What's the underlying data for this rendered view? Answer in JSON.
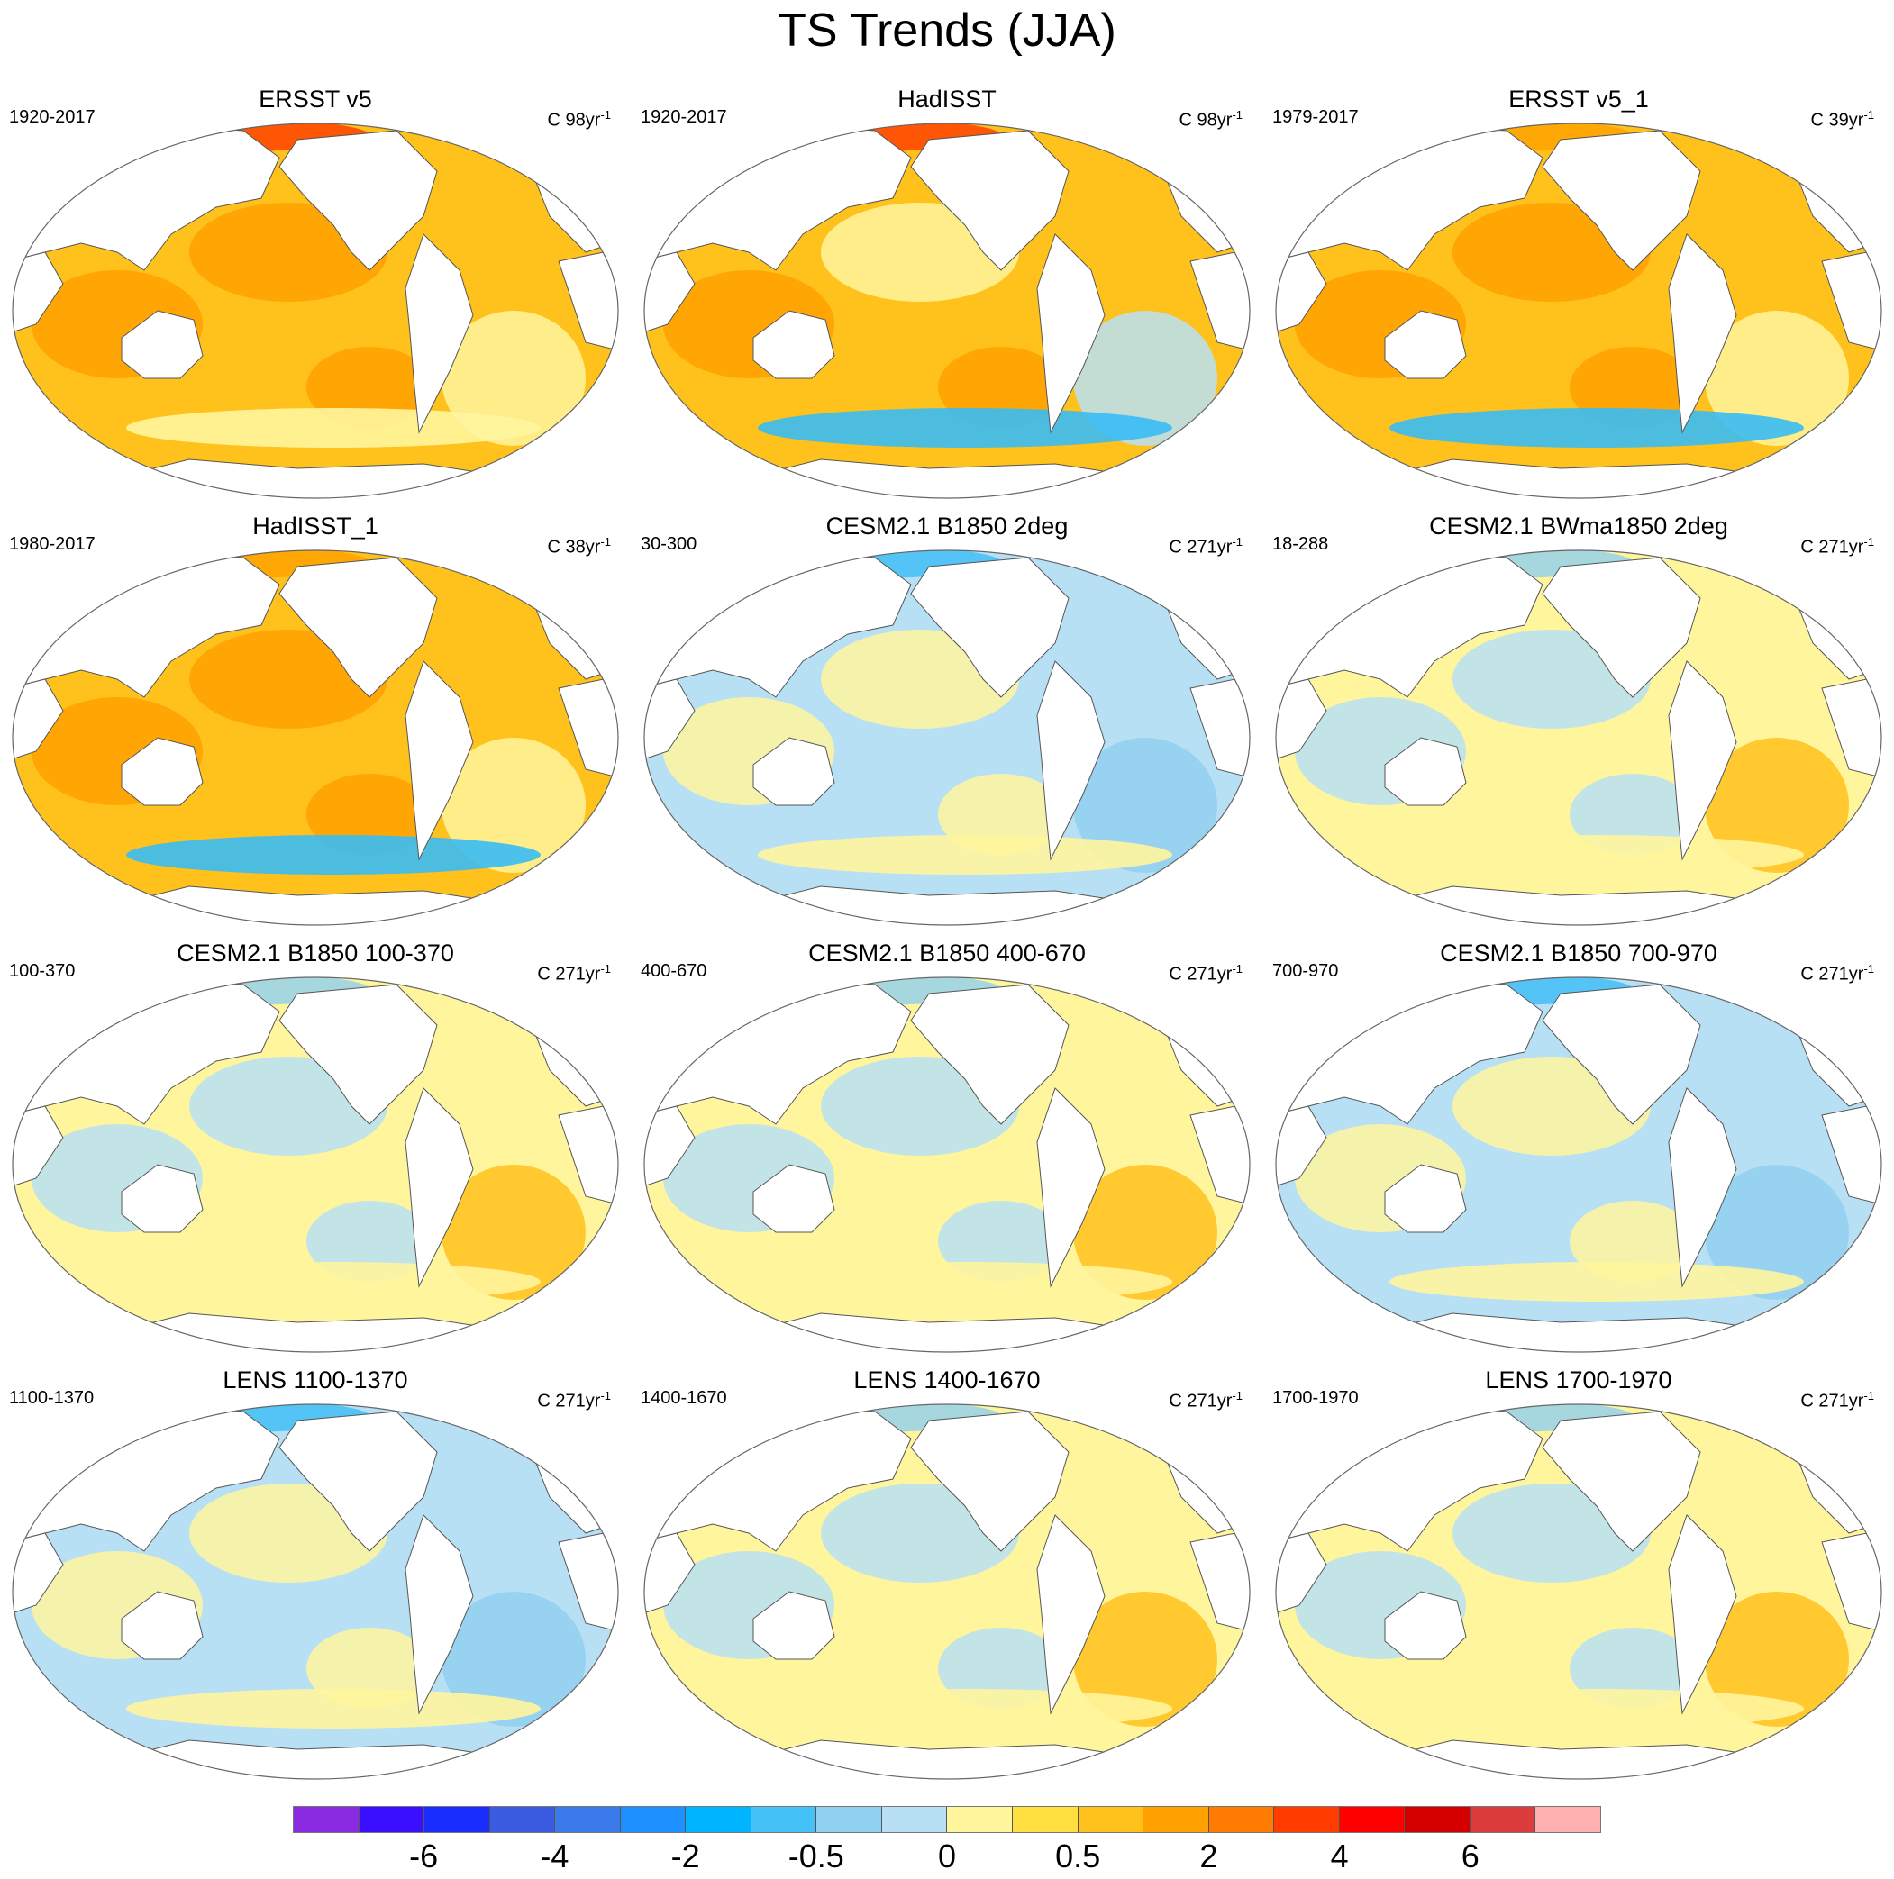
{
  "title": "TS Trends (JJA)",
  "colors": {
    "warm_strong": "#ffa000",
    "warm_mid": "#ffc11c",
    "warm_light": "#fff59d",
    "neutral_cool": "#b8e0f4",
    "cool_mid": "#90d0f0",
    "cool_strong": "#39bdf5",
    "hot": "#ff3b00",
    "land": "#ffffff"
  },
  "panels": [
    {
      "title": "ERSST v5",
      "period": "1920-2017",
      "units_prefix": "C 98yr",
      "units_exp": "-1",
      "pattern": "warm"
    },
    {
      "title": "HadISST",
      "period": "1920-2017",
      "units_prefix": "C 98yr",
      "units_exp": "-1",
      "pattern": "warm-noisy"
    },
    {
      "title": "ERSST v5_1",
      "period": "1979-2017",
      "units_prefix": "C 39yr",
      "units_exp": "-1",
      "pattern": "warm-south-cool"
    },
    {
      "title": "HadISST_1",
      "period": "1980-2017",
      "units_prefix": "C 38yr",
      "units_exp": "-1",
      "pattern": "warm-south-cool"
    },
    {
      "title": "CESM2.1 B1850 2deg",
      "period": "30-300",
      "units_prefix": "C 271yr",
      "units_exp": "-1",
      "pattern": "cool"
    },
    {
      "title": "CESM2.1 BWma1850 2deg",
      "period": "18-288",
      "units_prefix": "C 271yr",
      "units_exp": "-1",
      "pattern": "neutral"
    },
    {
      "title": "CESM2.1 B1850 100-370",
      "period": "100-370",
      "units_prefix": "C 271yr",
      "units_exp": "-1",
      "pattern": "neutral"
    },
    {
      "title": "CESM2.1 B1850 400-670",
      "period": "400-670",
      "units_prefix": "C 271yr",
      "units_exp": "-1",
      "pattern": "neutral"
    },
    {
      "title": "CESM2.1 B1850 700-970",
      "period": "700-970",
      "units_prefix": "C 271yr",
      "units_exp": "-1",
      "pattern": "cool"
    },
    {
      "title": "LENS 1100-1370",
      "period": "1100-1370",
      "units_prefix": "C 271yr",
      "units_exp": "-1",
      "pattern": "cool"
    },
    {
      "title": "LENS 1400-1670",
      "period": "1400-1670",
      "units_prefix": "C 271yr",
      "units_exp": "-1",
      "pattern": "neutral"
    },
    {
      "title": "LENS 1700-1970",
      "period": "1700-1970",
      "units_prefix": "C 271yr",
      "units_exp": "-1",
      "pattern": "neutral"
    }
  ],
  "colorbar": {
    "colors": [
      "#8a2be2",
      "#3a0fff",
      "#1a2dff",
      "#3b5be0",
      "#3a7aea",
      "#1e90ff",
      "#00b4ff",
      "#45c3f8",
      "#90d0f0",
      "#b8e0f4",
      "#fff59d",
      "#ffe040",
      "#ffc11c",
      "#ffa000",
      "#ff7a00",
      "#ff3b00",
      "#ff0000",
      "#d40000",
      "#dd3c3c",
      "#ffb0b0"
    ],
    "labels": [
      {
        "text": "-6",
        "boundary": 2
      },
      {
        "text": "-4",
        "boundary": 4
      },
      {
        "text": "-2",
        "boundary": 6
      },
      {
        "text": "-0.5",
        "boundary": 8
      },
      {
        "text": "0",
        "boundary": 10
      },
      {
        "text": "0.5",
        "boundary": 12
      },
      {
        "text": "2",
        "boundary": 14
      },
      {
        "text": "4",
        "boundary": 16
      },
      {
        "text": "6",
        "boundary": 18
      }
    ]
  }
}
